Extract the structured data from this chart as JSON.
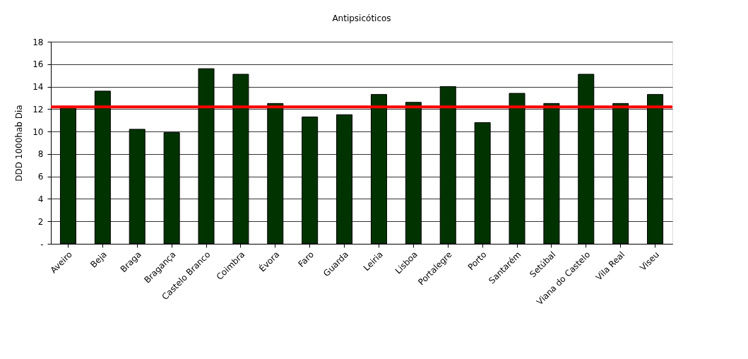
{
  "chart_data": {
    "type": "bar",
    "title": "Antipsicóticos",
    "ylabel": "DDD 1000hab Dia",
    "categories": [
      "Aveiro",
      "Beja",
      "Braga",
      "Bragança",
      "Castelo Branco",
      "Coimbra",
      "Évora",
      "Faro",
      "Guarda",
      "Leiria",
      "Lisboa",
      "Portalegre",
      "Porto",
      "Santarém",
      "Setúbal",
      "Viana do Castelo",
      "Vila Real",
      "Viseu"
    ],
    "values": [
      12.2,
      13.6,
      10.2,
      9.9,
      15.6,
      15.1,
      12.5,
      11.3,
      11.5,
      13.3,
      12.6,
      14.0,
      10.8,
      13.4,
      12.5,
      15.1,
      12.5,
      13.3
    ],
    "color": "#003300",
    "ylim": [
      0,
      18
    ],
    "yticks": [
      {
        "value": 0,
        "label": "-"
      },
      2,
      4,
      6,
      8,
      10,
      12,
      14,
      16,
      18
    ],
    "grid": "y",
    "ref_lines": [
      {
        "axis": "y",
        "value": 12.2,
        "color": "#ff0000"
      }
    ]
  }
}
